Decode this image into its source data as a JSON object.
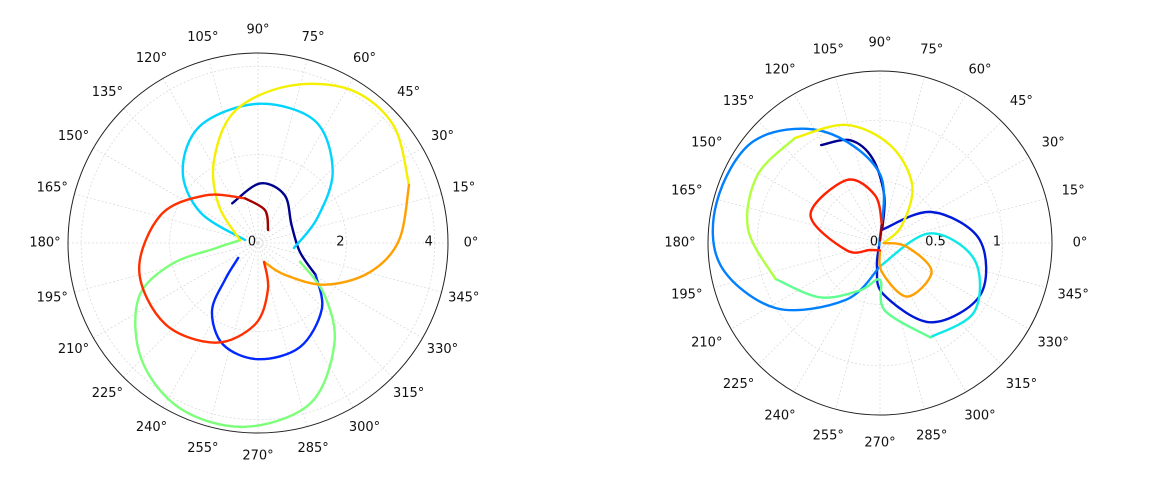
{
  "chart_data": [
    {
      "type": "polar",
      "rlim": [
        0,
        4.3
      ],
      "rticks": [
        0,
        2,
        4
      ],
      "grid": true,
      "thetaticks": [
        {
          "value": 0,
          "label": "0°"
        },
        {
          "value": 15,
          "label": "15°"
        },
        {
          "value": 30,
          "label": "30°"
        },
        {
          "value": 45,
          "label": "45°"
        },
        {
          "value": 60,
          "label": "60°"
        },
        {
          "value": 75,
          "label": "75°"
        },
        {
          "value": 90,
          "label": "90°"
        },
        {
          "value": 105,
          "label": "105°"
        },
        {
          "value": 120,
          "label": "120°"
        },
        {
          "value": 135,
          "label": "135°"
        },
        {
          "value": 150,
          "label": "150°"
        },
        {
          "value": 165,
          "label": "165°"
        },
        {
          "value": 180,
          "label": "180°"
        },
        {
          "value": 195,
          "label": "195°"
        },
        {
          "value": 210,
          "label": "210°"
        },
        {
          "value": 225,
          "label": "225°"
        },
        {
          "value": 240,
          "label": "240°"
        },
        {
          "value": 255,
          "label": "255°"
        },
        {
          "value": 270,
          "label": "270°"
        },
        {
          "value": 285,
          "label": "285°"
        },
        {
          "value": 300,
          "label": "300°"
        },
        {
          "value": 315,
          "label": "315°"
        },
        {
          "value": 330,
          "label": "330°"
        },
        {
          "value": 345,
          "label": "345°"
        }
      ],
      "series": [
        {
          "color": "#00008f",
          "theta": [
            123,
            88,
            61,
            28,
            348,
            331
          ],
          "r": [
            1.07,
            1.35,
            1.24,
            0.86,
            0.97,
            1.49
          ]
        },
        {
          "color": "#0028ff",
          "theta": [
            331,
            314,
            292,
            270,
            251,
            236,
            228,
            217
          ],
          "r": [
            1.49,
            2.08,
            2.54,
            2.63,
            2.43,
            1.86,
            1.11,
            0.56
          ]
        },
        {
          "color": "#00d4ff",
          "theta": [
            167,
            152,
            136,
            116,
            90,
            65,
            44,
            23,
            352
          ],
          "r": [
            0.3,
            1.48,
            2.37,
            2.96,
            3.15,
            3.05,
            2.35,
            1.46,
            0.82
          ]
        },
        {
          "color": "#7cff79",
          "theta": [
            336,
            322,
            307,
            288,
            266,
            245,
            225,
            205,
            194,
            187,
            171
          ],
          "r": [
            1.04,
            1.91,
            2.87,
            3.82,
            4.17,
            4.14,
            3.73,
            2.99,
            2.04,
            0.97,
            0.41
          ]
        },
        {
          "color": "#f4f000",
          "theta": [
            171,
            136,
            118,
            100,
            79,
            59,
            41,
            21
          ],
          "r": [
            0.41,
            1.24,
            2.12,
            3.03,
            3.62,
            4.05,
            4.06,
            3.66
          ]
        },
        {
          "color": "#ffa000",
          "theta": [
            21,
            1,
            345,
            328,
            310,
            288
          ],
          "r": [
            3.66,
            3.19,
            2.6,
            1.78,
            0.94,
            0.45
          ]
        },
        {
          "color": "#ff3000",
          "theta": [
            288,
            282,
            268,
            247,
            221,
            193,
            164,
            138,
            106
          ],
          "r": [
            0.45,
            1.08,
            1.84,
            2.45,
            2.79,
            2.76,
            2.29,
            1.61,
            1.05
          ]
        },
        {
          "color": "#a00000",
          "theta": [
            106,
            78,
            52
          ],
          "r": [
            1.05,
            0.76,
            0.37
          ]
        }
      ]
    },
    {
      "type": "polar",
      "rlim": [
        0,
        1.4
      ],
      "rticks": [
        0,
        0.5,
        1
      ],
      "grid": true,
      "thetaticks": [
        {
          "value": 0,
          "label": "0°"
        },
        {
          "value": 15,
          "label": "15°"
        },
        {
          "value": 30,
          "label": "30°"
        },
        {
          "value": 45,
          "label": "45°"
        },
        {
          "value": 60,
          "label": "60°"
        },
        {
          "value": 75,
          "label": "75°"
        },
        {
          "value": 90,
          "label": "90°"
        },
        {
          "value": 105,
          "label": "105°"
        },
        {
          "value": 120,
          "label": "120°"
        },
        {
          "value": 135,
          "label": "135°"
        },
        {
          "value": 150,
          "label": "150°"
        },
        {
          "value": 165,
          "label": "165°"
        },
        {
          "value": 180,
          "label": "180°"
        },
        {
          "value": 195,
          "label": "195°"
        },
        {
          "value": 210,
          "label": "210°"
        },
        {
          "value": 225,
          "label": "225°"
        },
        {
          "value": 240,
          "label": "240°"
        },
        {
          "value": 255,
          "label": "255°"
        },
        {
          "value": 270,
          "label": "270°"
        },
        {
          "value": 285,
          "label": "285°"
        },
        {
          "value": 300,
          "label": "300°"
        },
        {
          "value": 315,
          "label": "315°"
        },
        {
          "value": 330,
          "label": "330°"
        },
        {
          "value": 345,
          "label": "345°"
        }
      ],
      "series": [
        {
          "color": "#00008f",
          "theta": [
            121,
            106,
            95,
            85,
            81
          ],
          "r": [
            0.93,
            0.87,
            0.69,
            0.39,
            0.11
          ]
        },
        {
          "color": "#0018d8",
          "theta": [
            81,
            31,
            2,
            333,
            303,
            274,
            263,
            250
          ],
          "r": [
            0.11,
            0.49,
            0.81,
            0.92,
            0.77,
            0.42,
            0.2,
            0.02
          ]
        },
        {
          "color": "#0080ff",
          "theta": [
            250,
            90,
            117,
            141,
            166,
            188,
            212,
            239,
            270
          ],
          "r": [
            0.02,
            0.56,
            1.02,
            1.32,
            1.37,
            1.31,
            1.0,
            0.54,
            0.19
          ]
        },
        {
          "color": "#10e8e8",
          "theta": [
            270,
            11,
            350,
            324,
            298
          ],
          "r": [
            0.19,
            0.41,
            0.78,
            0.95,
            0.87
          ]
        },
        {
          "color": "#60ff90",
          "theta": [
            298,
            274,
            270,
            247,
            222,
            199
          ],
          "r": [
            0.87,
            0.55,
            0.3,
            0.42,
            0.66,
            0.9
          ]
        },
        {
          "color": "#b0ff40",
          "theta": [
            199,
            174,
            151,
            129
          ],
          "r": [
            0.9,
            1.08,
            1.14,
            1.1
          ]
        },
        {
          "color": "#f0f000",
          "theta": [
            129,
            106,
            84,
            61,
            39,
            0
          ],
          "r": [
            1.1,
            1.0,
            0.8,
            0.54,
            0.23,
            0.03
          ]
        },
        {
          "color": "#ffa000",
          "theta": [
            0,
            352,
            331,
            297,
            274,
            270
          ],
          "r": [
            0.03,
            0.22,
            0.48,
            0.49,
            0.24,
            0.06
          ]
        },
        {
          "color": "#ff2000",
          "theta": [
            270,
            215,
            192,
            158,
            118,
            96,
            84
          ],
          "r": [
            0.06,
            0.1,
            0.28,
            0.61,
            0.58,
            0.39,
            0.15
          ]
        },
        {
          "color": "#a00000",
          "theta": [
            84,
            90
          ],
          "r": [
            0.15,
            0.02
          ]
        }
      ]
    }
  ]
}
